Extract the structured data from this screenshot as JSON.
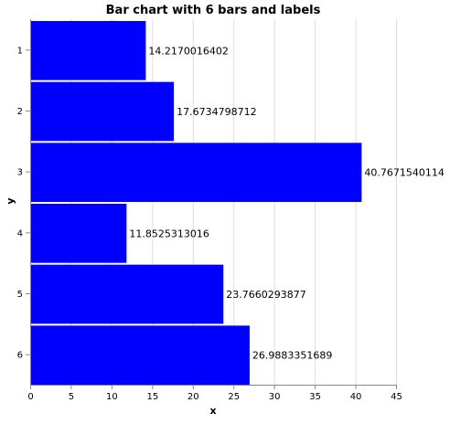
{
  "chart_data": {
    "type": "bar",
    "orientation": "horizontal",
    "title": "Bar chart with 6 bars and labels",
    "xlabel": "x",
    "ylabel": "y",
    "categories": [
      "1",
      "2",
      "3",
      "4",
      "5",
      "6"
    ],
    "values": [
      14.2170016402,
      17.6734798712,
      40.7671540114,
      11.8525313016,
      23.7660293877,
      26.9883351689
    ],
    "value_labels": [
      "14.2170016402",
      "17.6734798712",
      "40.7671540114",
      "11.8525313016",
      "23.7660293877",
      "26.9883351689"
    ],
    "xlim": [
      0,
      45
    ],
    "x_ticks": [
      0,
      5,
      10,
      15,
      20,
      25,
      30,
      35,
      40,
      45
    ],
    "grid": true,
    "bar_color": "#0000ff"
  }
}
